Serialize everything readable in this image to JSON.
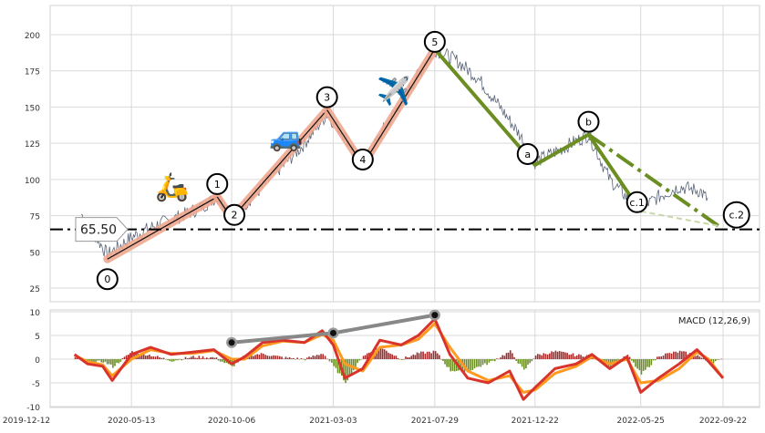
{
  "chart_data": [
    {
      "type": "line",
      "title": "",
      "xlabel": "",
      "ylabel": "",
      "ylim": [
        15,
        220
      ],
      "grid": true,
      "x_ticks": [
        "2019-12-12",
        "2020-05-13",
        "2020-10-06",
        "2021-03-03",
        "2021-07-29",
        "2021-12-22",
        "2022-05-25",
        "2022-09-22"
      ],
      "y_ticks": [
        25,
        50,
        75,
        100,
        125,
        150,
        175,
        200
      ],
      "support_line": {
        "value": 65.5,
        "label": "65.50"
      },
      "wave_points": [
        {
          "label": "0",
          "date": "2020-04-08",
          "value": 45
        },
        {
          "label": "1",
          "date": "2020-09-15",
          "value": 88
        },
        {
          "label": "2",
          "date": "2020-10-06",
          "value": 73
        },
        {
          "label": "3",
          "date": "2021-02-22",
          "value": 148
        },
        {
          "label": "4",
          "date": "2021-04-15",
          "value": 110
        },
        {
          "label": "5",
          "date": "2021-07-29",
          "value": 190
        },
        {
          "label": "a",
          "date": "2021-12-22",
          "value": 110
        },
        {
          "label": "b",
          "date": "2022-03-10",
          "value": 131
        },
        {
          "label": "c.1",
          "date": "2022-05-25",
          "value": 78
        },
        {
          "label": "c.2",
          "date": "2022-09-15",
          "value": 68
        }
      ],
      "price_series": {
        "dates": [
          "2020-03-01",
          "2020-04-08",
          "2020-05-13",
          "2020-06-15",
          "2020-07-20",
          "2020-08-20",
          "2020-09-15",
          "2020-10-06",
          "2020-11-10",
          "2020-12-10",
          "2021-01-15",
          "2021-02-22",
          "2021-03-20",
          "2021-04-15",
          "2021-05-20",
          "2021-06-25",
          "2021-07-29",
          "2021-08-30",
          "2021-09-30",
          "2021-11-01",
          "2021-12-01",
          "2021-12-22",
          "2022-01-25",
          "2022-03-10",
          "2022-04-10",
          "2022-05-10",
          "2022-05-25",
          "2022-06-20",
          "2022-07-20",
          "2022-08-20",
          "2022-09-01"
        ],
        "values": [
          76,
          48,
          60,
          68,
          74,
          80,
          88,
          74,
          90,
          105,
          122,
          145,
          130,
          110,
          138,
          165,
          190,
          182,
          170,
          150,
          130,
          112,
          120,
          131,
          100,
          85,
          80,
          88,
          95,
          92,
          85
        ]
      }
    },
    {
      "type": "line",
      "title": "MACD (12,26,9)",
      "ylim": [
        -10,
        11
      ],
      "y_ticks": [
        -10,
        -5,
        0,
        5,
        10
      ],
      "x_ticks": [
        "2019-12-12",
        "2020-05-13",
        "2020-10-06",
        "2021-03-03",
        "2021-07-29",
        "2021-12-22",
        "2022-05-25",
        "2022-09-22"
      ],
      "series": [
        {
          "dates": [
            "2020-02-20",
            "2020-03-10",
            "2020-04-01",
            "2020-04-15",
            "2020-05-13",
            "2020-06-10",
            "2020-07-10",
            "2020-08-10",
            "2020-09-10",
            "2020-10-06",
            "2020-10-25",
            "2020-11-20",
            "2020-12-20",
            "2021-01-20",
            "2021-02-15",
            "2021-03-03",
            "2021-03-20",
            "2021-04-15",
            "2021-05-10",
            "2021-06-10",
            "2021-07-05",
            "2021-07-29",
            "2021-08-20",
            "2021-09-15",
            "2021-10-15",
            "2021-11-15",
            "2021-12-05",
            "2021-12-22",
            "2022-01-20",
            "2022-02-20",
            "2022-03-15",
            "2022-04-10",
            "2022-05-05",
            "2022-05-25",
            "2022-06-20",
            "2022-07-20",
            "2022-08-15",
            "2022-09-01",
            "2022-09-22"
          ],
          "values": [
            1,
            -1,
            -1.5,
            -4.5,
            1,
            2.5,
            1,
            1.5,
            2,
            -1,
            0.5,
            3.5,
            4,
            3.5,
            6,
            3,
            -4,
            -2,
            4,
            3,
            5,
            8.5,
            1,
            -4,
            -5,
            -2.5,
            -8.5,
            -6,
            -2,
            -1,
            1,
            -2,
            0.5,
            -7,
            -4,
            -1,
            2,
            -0.5,
            -4
          ]
        },
        {
          "dates": [
            "2020-02-20",
            "2020-03-10",
            "2020-04-01",
            "2020-04-15",
            "2020-05-13",
            "2020-06-10",
            "2020-07-10",
            "2020-08-10",
            "2020-09-10",
            "2020-10-06",
            "2020-10-25",
            "2020-11-20",
            "2020-12-20",
            "2021-01-20",
            "2021-02-15",
            "2021-03-03",
            "2021-03-20",
            "2021-04-15",
            "2021-05-10",
            "2021-06-10",
            "2021-07-05",
            "2021-07-29",
            "2021-08-20",
            "2021-09-15",
            "2021-10-15",
            "2021-11-15",
            "2021-12-05",
            "2021-12-22",
            "2022-01-20",
            "2022-02-20",
            "2022-03-15",
            "2022-04-10",
            "2022-05-05",
            "2022-05-25",
            "2022-06-20",
            "2022-07-20",
            "2022-08-15",
            "2022-09-01",
            "2022-09-22"
          ],
          "values": [
            0.8,
            -0.5,
            -1.2,
            -3.5,
            0,
            2,
            1.2,
            1.2,
            1.8,
            0,
            0,
            2.8,
            3.8,
            3.5,
            5.2,
            4,
            -1,
            -2.5,
            2.5,
            3,
            4.2,
            7.5,
            2.5,
            -2.5,
            -4.5,
            -3.5,
            -7,
            -6.5,
            -3,
            -1.5,
            0.5,
            -1,
            0,
            -5,
            -4.5,
            -2,
            1.5,
            0,
            -4
          ]
        }
      ],
      "divergence_points": [
        {
          "date": "2020-10-06",
          "value": 3.5
        },
        {
          "date": "2021-03-03",
          "value": 5.5
        },
        {
          "date": "2021-07-29",
          "value": 9.3
        }
      ]
    }
  ],
  "colors": {
    "price_line": "#5a6478",
    "impulse_wave": "#f0a890",
    "correction_wave": "#6b8e23",
    "macd_line": "#d9342b",
    "signal_line": "#ff9a1f",
    "hist_pos": "#a52a2a",
    "hist_neg": "#6b8e23",
    "grid": "#d9d9d9",
    "background": "#ffffff"
  },
  "icons": [
    "scooter-icon",
    "car-icon",
    "airplane-icon"
  ]
}
